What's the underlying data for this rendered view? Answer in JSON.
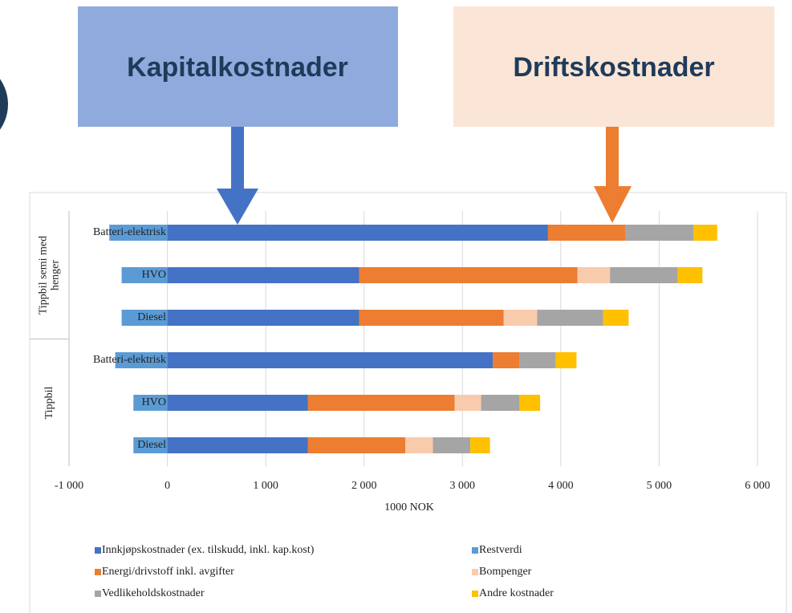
{
  "chart_data": {
    "type": "bar",
    "orientation": "horizontal",
    "stacked": true,
    "annotations": [
      {
        "text": "Kapitalkostnader"
      },
      {
        "text": "Driftskostnader"
      }
    ],
    "group_labels": [
      "Tippbil semi med henger",
      "Tippbil"
    ],
    "categories": [
      "Batteri-elektrisk",
      "HVO",
      "Diesel",
      "Batteri-elektrisk",
      "HVO",
      "Diesel"
    ],
    "x_label": "1000 NOK",
    "xlim": [
      -1000,
      6000
    ],
    "xticks": [
      {
        "value": -1000,
        "label": "-1 000"
      },
      0,
      {
        "value": 1000,
        "label": "1 000"
      },
      {
        "value": 2000,
        "label": "2 000"
      },
      {
        "value": 3000,
        "label": "3 000"
      },
      {
        "value": 4000,
        "label": "4 000"
      },
      {
        "value": 5000,
        "label": "5 000"
      },
      {
        "value": 6000,
        "label": "6 000"
      }
    ],
    "grid": true,
    "legend": "bottom",
    "series": [
      {
        "name": "Innkjøpskostnader (ex. tilskudd, inkl. kap.kost)",
        "color": "#4472c4",
        "values": [
          3870,
          1950,
          1950,
          3310,
          1430,
          1430
        ]
      },
      {
        "name": "Restverdi",
        "color": "#5b9bd5",
        "values": [
          -590,
          -465,
          -465,
          -530,
          -345,
          -345
        ]
      },
      {
        "name": "Energi/drivstoff inkl. avgifter",
        "color": "#ed7d31",
        "values": [
          790,
          2220,
          1470,
          270,
          1490,
          990
        ]
      },
      {
        "name": "Bompenger",
        "color": "#f8cbad",
        "values": [
          0,
          330,
          340,
          0,
          270,
          280
        ]
      },
      {
        "name": "Vedlikeholdskostnader",
        "color": "#a5a5a5",
        "values": [
          690,
          690,
          670,
          370,
          390,
          380
        ]
      },
      {
        "name": "Andre kostnader",
        "color": "#ffc000",
        "values": [
          240,
          250,
          260,
          210,
          210,
          200
        ]
      }
    ]
  }
}
